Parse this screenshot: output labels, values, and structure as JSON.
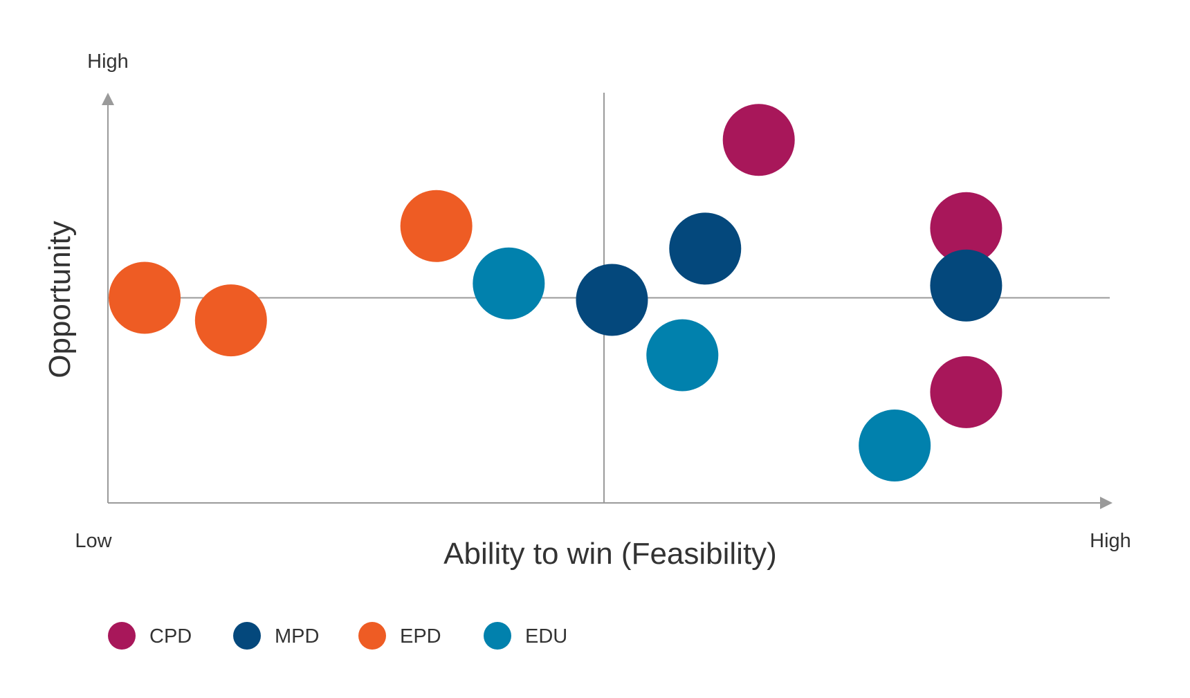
{
  "chart_data": {
    "type": "scatter",
    "title": "",
    "xlabel": "Ability to win (Feasibility)",
    "ylabel": "Opportunity",
    "x_low_label": "Low",
    "x_high_label": "High",
    "y_high_label": "High",
    "xlim": [
      0,
      100
    ],
    "ylim": [
      0,
      100
    ],
    "divider_x": 50,
    "divider_y": 50,
    "legend_position": "bottom-left",
    "series": [
      {
        "name": "CPD",
        "color": "#A8175A",
        "points": [
          {
            "x": 65.6,
            "y": 88.5
          },
          {
            "x": 86.5,
            "y": 67.0
          },
          {
            "x": 86.5,
            "y": 27.0
          }
        ]
      },
      {
        "name": "MPD",
        "color": "#04487C",
        "points": [
          {
            "x": 60.2,
            "y": 62.0
          },
          {
            "x": 50.8,
            "y": 49.5
          },
          {
            "x": 86.5,
            "y": 53.0
          }
        ]
      },
      {
        "name": "EPD",
        "color": "#EE5C24",
        "points": [
          {
            "x": 3.7,
            "y": 50.0
          },
          {
            "x": 12.4,
            "y": 44.5
          },
          {
            "x": 33.1,
            "y": 67.5
          }
        ]
      },
      {
        "name": "EDU",
        "color": "#0181AD",
        "points": [
          {
            "x": 40.4,
            "y": 53.5
          },
          {
            "x": 57.9,
            "y": 36.0
          },
          {
            "x": 79.3,
            "y": 14.0
          }
        ]
      }
    ]
  }
}
